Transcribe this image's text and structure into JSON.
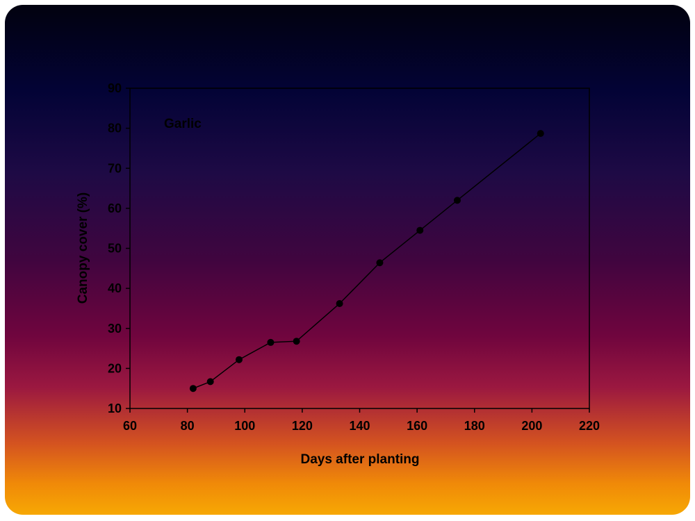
{
  "chart_data": {
    "type": "line",
    "annotation": "Garlic",
    "xlabel": "Days after planting",
    "ylabel": "Canopy cover (%)",
    "xlim": [
      60,
      220
    ],
    "ylim": [
      10,
      90
    ],
    "xticks": [
      60,
      80,
      100,
      120,
      140,
      160,
      180,
      200,
      220
    ],
    "yticks": [
      10,
      20,
      30,
      40,
      50,
      60,
      70,
      80,
      90
    ],
    "grid": false,
    "marker": "filled-circle",
    "colors": {
      "line": "#000000",
      "marker": "#000000",
      "background": "#ffffff"
    },
    "series": [
      {
        "x": [
          82,
          88,
          98,
          109,
          118,
          133,
          147,
          161,
          174,
          203
        ],
        "y": [
          15.0,
          16.7,
          22.2,
          26.5,
          26.8,
          36.2,
          46.4,
          54.5,
          62.0,
          78.7
        ]
      }
    ]
  }
}
